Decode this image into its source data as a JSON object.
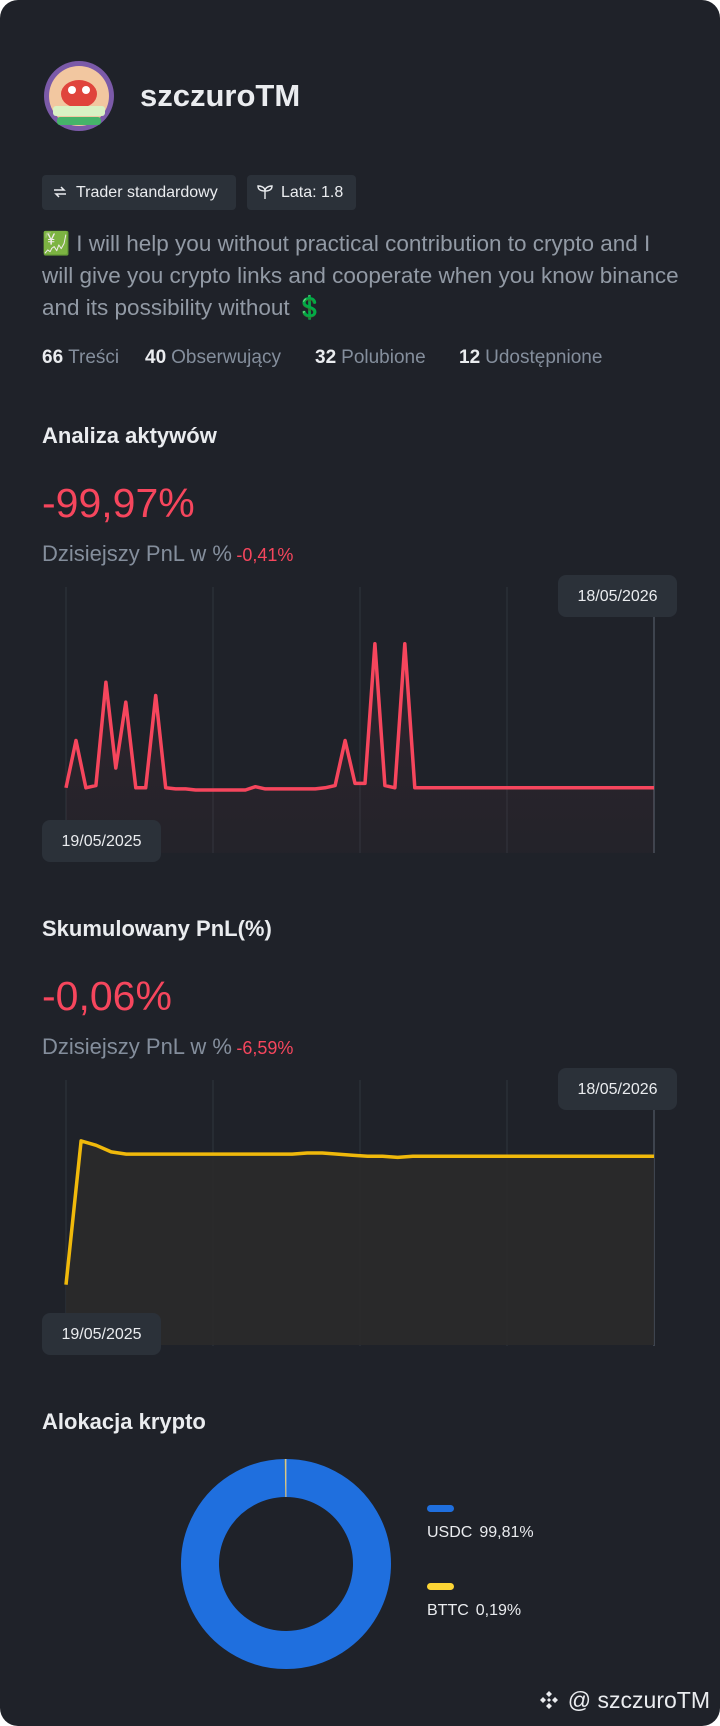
{
  "profile": {
    "name": "szczuroTM",
    "tags": [
      "Trader standardowy",
      "Lata: 1.8"
    ],
    "bio": "💹 I will help you without practical contribution to crypto and I will give you crypto links and cooperate when you know binance and its possibility without 💲",
    "stats": [
      {
        "value": 66,
        "label": "Treści"
      },
      {
        "value": 40,
        "label": "Obserwujący"
      },
      {
        "value": 32,
        "label": "Polubione"
      },
      {
        "value": 12,
        "label": "Udostępnione"
      }
    ],
    "watermark": "@ szczuroTM"
  },
  "chart_data": [
    {
      "type": "line",
      "title": "Analiza aktywów",
      "headline": "-99,97%",
      "subtitle": "Dzisiejszy PnL w %",
      "today_change": "-0,41%",
      "date_range": [
        "19/05/2025",
        "18/05/2026"
      ],
      "color": "#f6465d",
      "values": [
        2,
        45,
        2,
        4,
        98,
        20,
        80,
        2,
        2,
        86,
        2,
        1,
        1,
        0,
        0,
        0,
        0,
        0,
        0,
        3,
        1,
        1,
        1,
        1,
        1,
        1,
        2,
        4,
        45,
        6,
        6,
        133,
        4,
        2,
        133,
        2,
        2,
        2,
        2,
        2,
        2,
        2,
        2,
        2,
        2,
        2,
        2,
        2,
        2,
        2,
        2,
        2,
        2,
        2,
        2,
        2,
        2,
        2,
        2,
        2
      ]
    },
    {
      "type": "area",
      "title": "Skumulowany PnL(%)",
      "headline": "-0,06%",
      "subtitle": "Dzisiejszy PnL w %",
      "today_change": "-6,59%",
      "date_range": [
        "19/05/2025",
        "18/05/2026"
      ],
      "color": "#f0b90b",
      "values": [
        55,
        186,
        182,
        176,
        174,
        174,
        174,
        174,
        174,
        174,
        174,
        174,
        174,
        174,
        174,
        174,
        175,
        175,
        174,
        173,
        172,
        172,
        171,
        172,
        172,
        172,
        172,
        172,
        172,
        172,
        172,
        172,
        172,
        172,
        172,
        172,
        172,
        172,
        172,
        172
      ]
    },
    {
      "type": "pie",
      "title": "Alokacja krypto",
      "categories": [
        "USDC",
        "BTTC"
      ],
      "values": [
        99.81,
        0.19
      ],
      "value_labels": [
        "99,81%",
        "0,19%"
      ],
      "colors": [
        "#1f6fde",
        "#fcd535"
      ]
    }
  ]
}
